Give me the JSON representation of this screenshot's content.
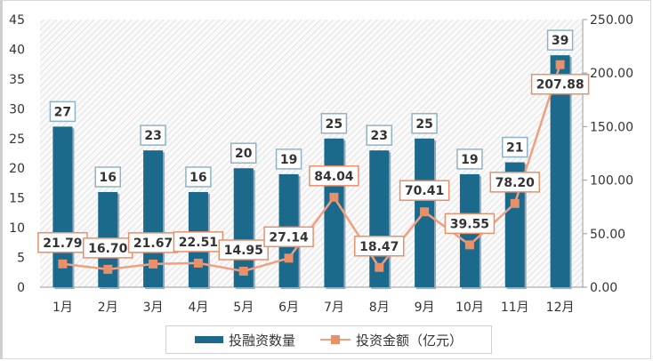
{
  "chart_data": {
    "type": "bar+line",
    "categories": [
      "1月",
      "2月",
      "3月",
      "4月",
      "5月",
      "6月",
      "7月",
      "8月",
      "9月",
      "10月",
      "11月",
      "12月"
    ],
    "series": [
      {
        "name": "投融资数量",
        "type": "bar",
        "axis": "left",
        "color": "#1b6a8c",
        "values": [
          27,
          16,
          23,
          16,
          20,
          19,
          25,
          23,
          25,
          19,
          21,
          39
        ]
      },
      {
        "name": "投资金额（亿元）",
        "type": "line",
        "axis": "right",
        "color": "#f0a080",
        "values": [
          21.79,
          16.7,
          21.67,
          22.51,
          14.95,
          27.14,
          84.04,
          18.47,
          70.41,
          39.55,
          78.2,
          207.88
        ]
      }
    ],
    "left_axis": {
      "range": [
        0,
        45
      ],
      "ticks": [
        "0",
        "5",
        "10",
        "15",
        "20",
        "25",
        "30",
        "35",
        "40",
        "45"
      ]
    },
    "right_axis": {
      "range": [
        0,
        250
      ],
      "ticks": [
        "0.00",
        "50.00",
        "100.00",
        "150.00",
        "200.00",
        "250.00"
      ]
    },
    "bar_labels": [
      "27",
      "16",
      "23",
      "16",
      "20",
      "19",
      "25",
      "23",
      "25",
      "19",
      "21",
      "39"
    ],
    "line_labels": [
      "21.79",
      "16.70",
      "21.67",
      "22.51",
      "14.95",
      "27.14",
      "84.04",
      "18.47",
      "70.41",
      "39.55",
      "78.20",
      "207.88"
    ],
    "legend": {
      "position": "bottom",
      "items": [
        "投融资数量",
        "投资金额（亿元）"
      ]
    },
    "grid": false
  }
}
